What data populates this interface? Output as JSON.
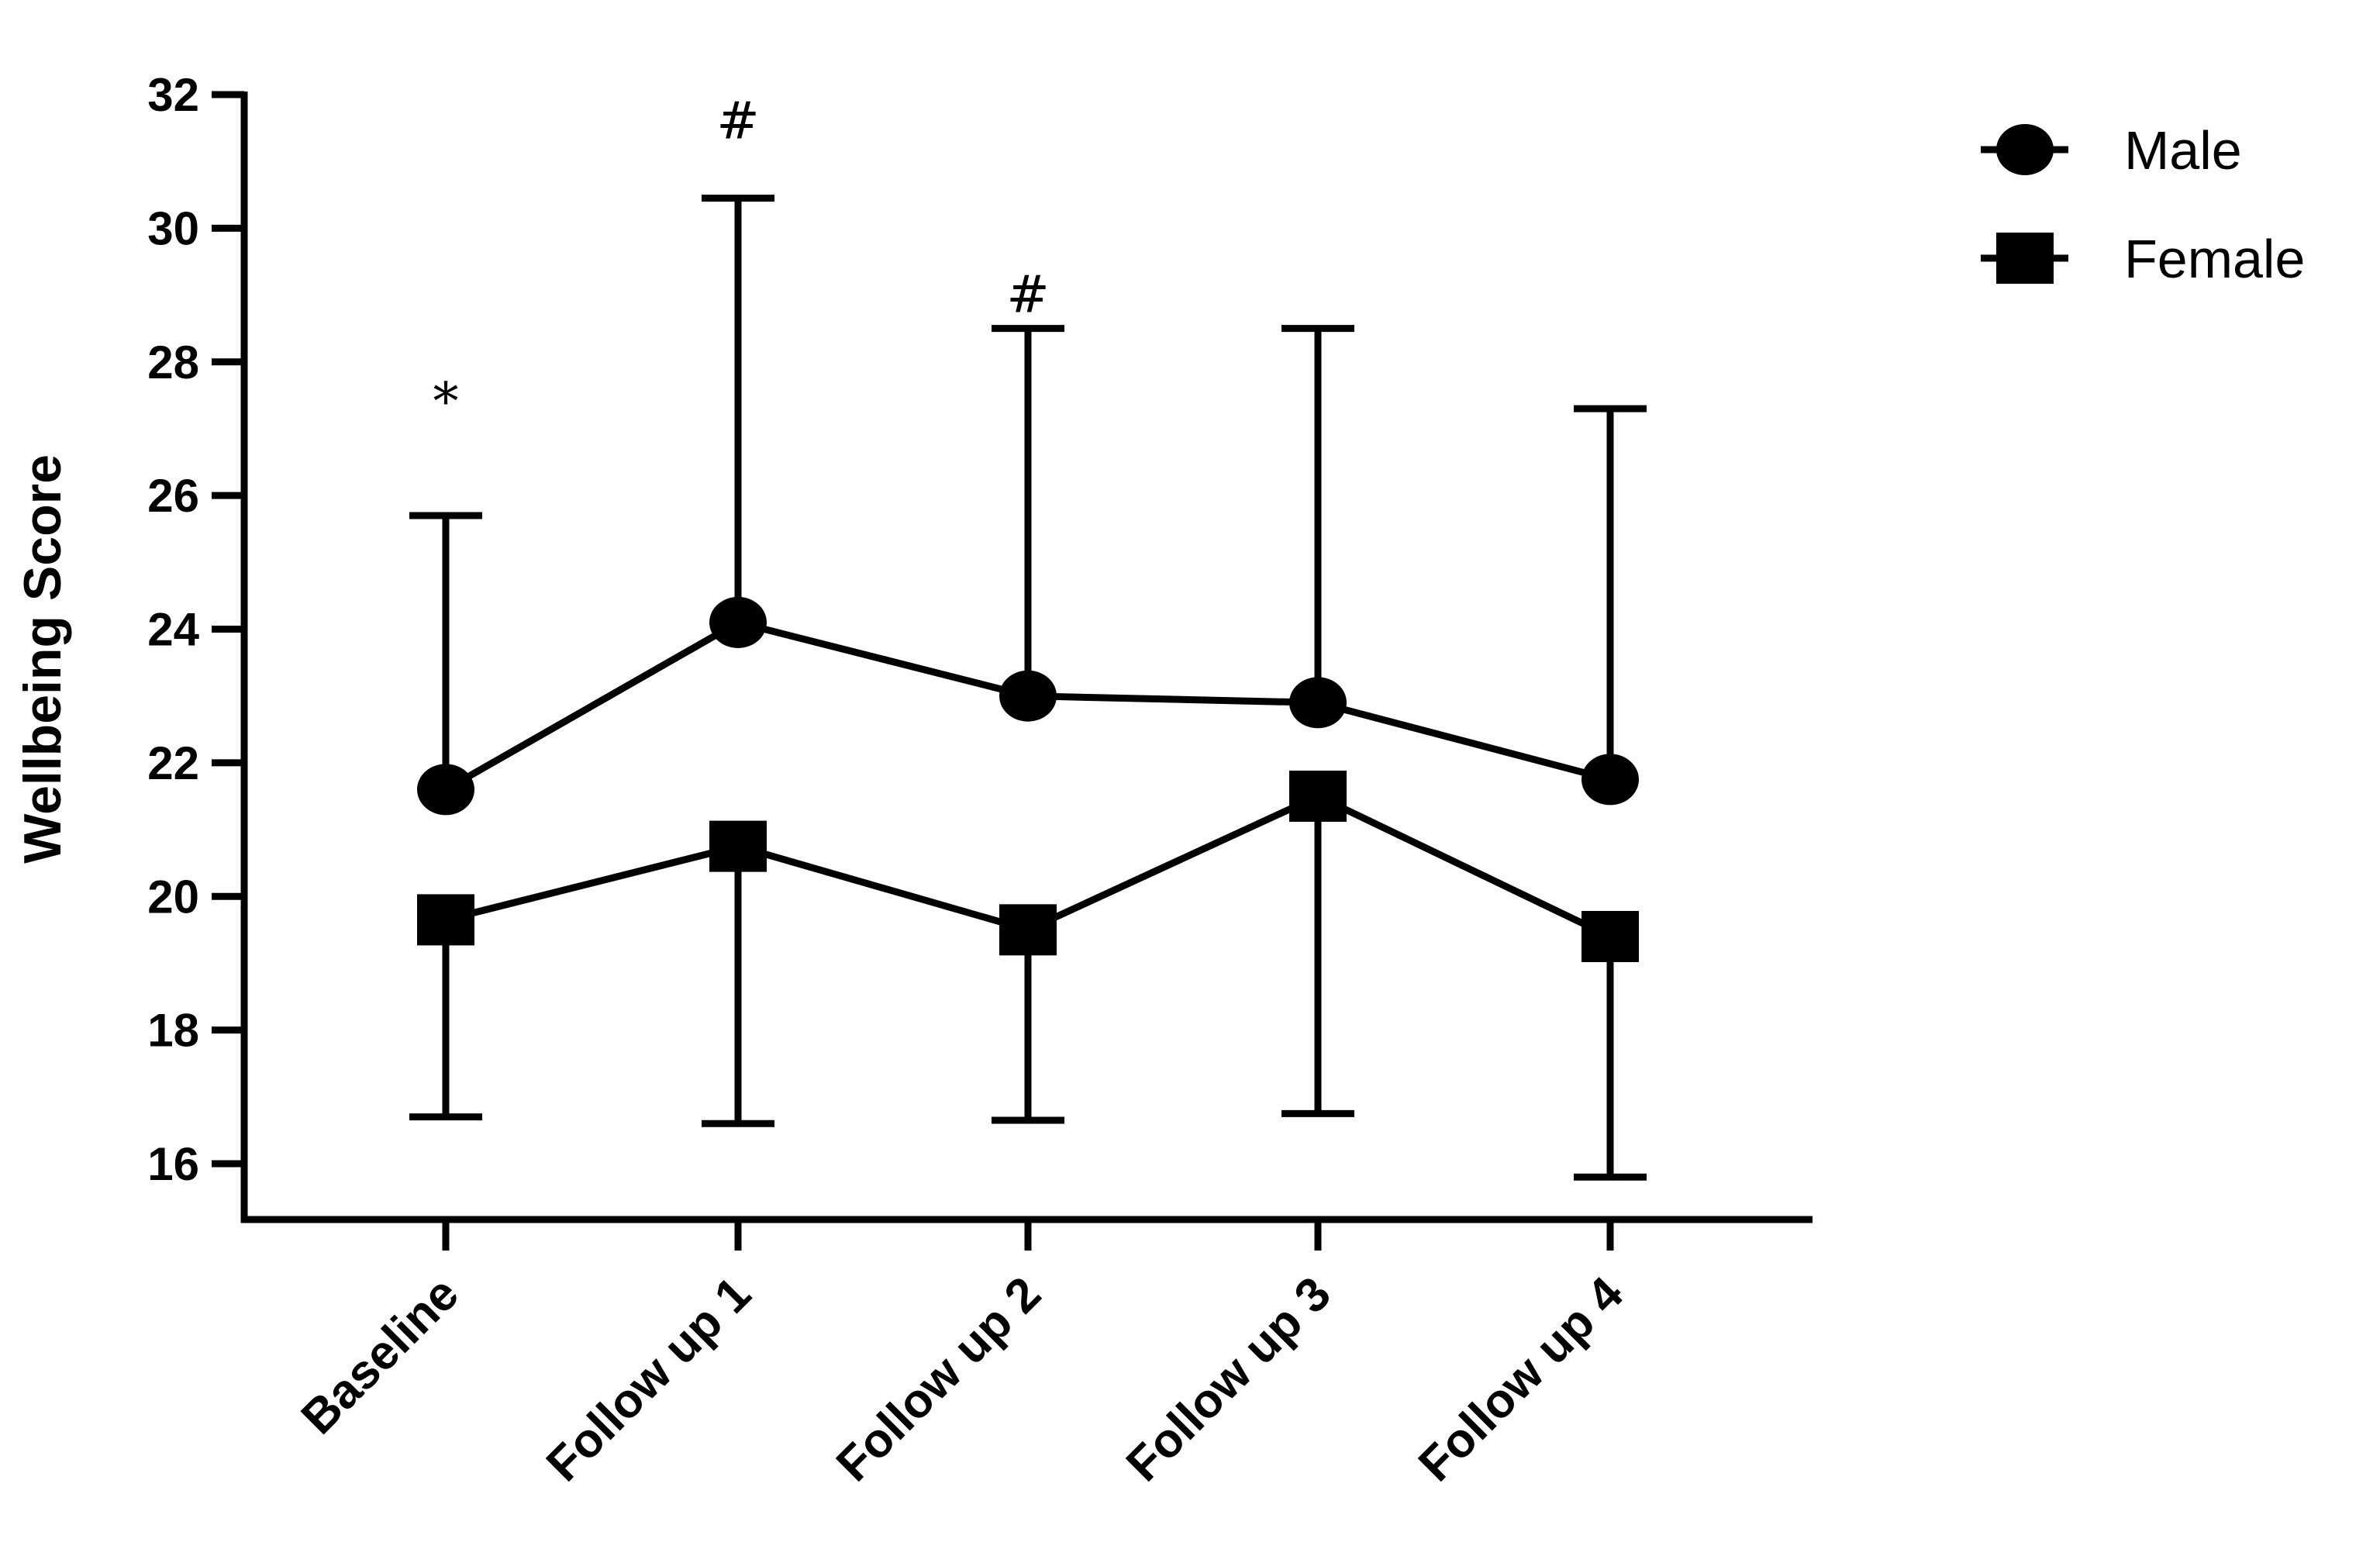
{
  "chart_data": {
    "type": "line",
    "title": "",
    "xlabel": "",
    "ylabel": "Wellbeing Score",
    "categories": [
      "Baseline",
      "Follow up 1",
      "Follow up 2",
      "Follow up 3",
      "Follow up 4"
    ],
    "ylim": [
      15,
      32
    ],
    "yticks": [
      16,
      18,
      20,
      22,
      24,
      26,
      28,
      30,
      32
    ],
    "grid": false,
    "legend_position": "top-right",
    "series": [
      {
        "name": "Male",
        "marker": "circle",
        "values": [
          21.6,
          24.1,
          23.0,
          22.9,
          21.75
        ],
        "error_upper": [
          25.7,
          30.45,
          28.5,
          28.5,
          27.3
        ],
        "error_direction": "up",
        "color": "#000000"
      },
      {
        "name": "Female",
        "marker": "square",
        "values": [
          19.65,
          20.75,
          19.5,
          21.5,
          19.4
        ],
        "error_lower": [
          16.7,
          16.6,
          16.65,
          16.75,
          15.8
        ],
        "error_direction": "down",
        "color": "#000000"
      }
    ],
    "annotations": [
      {
        "category": "Baseline",
        "text": "*",
        "y": 27.4
      },
      {
        "category": "Follow up 1",
        "text": "#",
        "y": 31.6
      },
      {
        "category": "Follow up 2",
        "text": "#",
        "y": 29.0
      }
    ]
  }
}
